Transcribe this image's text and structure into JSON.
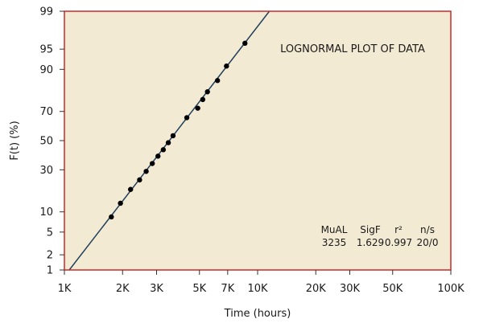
{
  "chart_data": {
    "type": "scatter",
    "title": "",
    "xlabel": "Time (hours)",
    "ylabel": "F(t) (%)",
    "x_scale": "log",
    "y_scale": "lognormal-probability",
    "xlim": [
      1000,
      100000
    ],
    "ylim": [
      1,
      99
    ],
    "x_ticks": [
      1000,
      2000,
      3000,
      5000,
      7000,
      10000,
      20000,
      30000,
      50000,
      100000
    ],
    "x_tick_labels": [
      "1K",
      "2K",
      "3K",
      "5K",
      "7K",
      "10K",
      "20K",
      "30K",
      "50K",
      "100K"
    ],
    "y_ticks": [
      1,
      2,
      5,
      10,
      30,
      50,
      70,
      90,
      95,
      99
    ],
    "y_tick_labels": [
      "1",
      "2",
      "5",
      "10",
      "30",
      "50",
      "70",
      "90",
      "95",
      "99"
    ],
    "annotation": "LOGNORMAL PLOT OF DATA",
    "colors": {
      "plot_background": "#f3ead4",
      "frame": "#cc2a2a",
      "fit_line": "#1f3f5a",
      "points": "#000000"
    },
    "stats": {
      "headers": [
        "MuAL",
        "SigF",
        "r²",
        "n/s"
      ],
      "values": [
        "3235",
        "1.629",
        "0.997",
        "20/0"
      ]
    },
    "series": [
      {
        "type": "scatter",
        "points": [
          {
            "x": 1750,
            "y": 8.5
          },
          {
            "x": 1950,
            "y": 13
          },
          {
            "x": 2200,
            "y": 19
          },
          {
            "x": 2450,
            "y": 24
          },
          {
            "x": 2650,
            "y": 29
          },
          {
            "x": 2850,
            "y": 34
          },
          {
            "x": 3050,
            "y": 39
          },
          {
            "x": 3250,
            "y": 43.5
          },
          {
            "x": 3450,
            "y": 48.5
          },
          {
            "x": 3650,
            "y": 53.5
          },
          {
            "x": 4300,
            "y": 66
          },
          {
            "x": 4900,
            "y": 72
          },
          {
            "x": 5200,
            "y": 77
          },
          {
            "x": 5500,
            "y": 81
          },
          {
            "x": 6200,
            "y": 86
          },
          {
            "x": 6900,
            "y": 91
          },
          {
            "x": 8600,
            "y": 96
          }
        ]
      },
      {
        "type": "line",
        "points": [
          {
            "x": 1060,
            "y": 1
          },
          {
            "x": 11500,
            "y": 99
          }
        ]
      }
    ]
  }
}
